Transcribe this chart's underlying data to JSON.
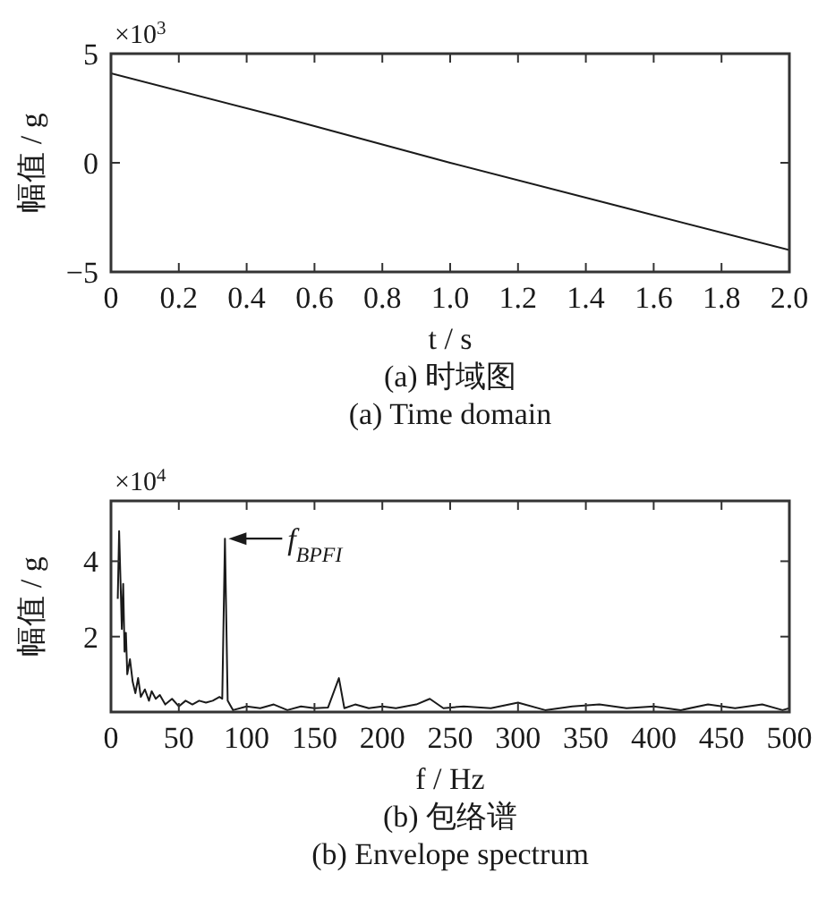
{
  "chart_data": [
    {
      "type": "line",
      "xlabel": "t / s",
      "ylabel": "幅值 / g",
      "xlim": [
        0,
        2.0
      ],
      "ylim": [
        -5,
        5
      ],
      "xticks": [
        0,
        0.2,
        0.4,
        0.6,
        0.8,
        {
          "value": 1.0,
          "label": "1.0"
        },
        1.2,
        1.4,
        1.6,
        1.8,
        {
          "value": 2.0,
          "label": "2.0"
        }
      ],
      "yticks": [
        {
          "value": -5,
          "label": "−5"
        },
        0,
        5
      ],
      "annotations": [
        "×10$^{3}$",
        "(a)  时域图",
        "(a)  Time domain"
      ],
      "series": [
        {
          "color": "#1a1a1a",
          "x": [
            0,
            0.5,
            1.0,
            1.5,
            2.0
          ],
          "values": [
            4.1,
            2.1,
            0.0,
            -2.0,
            -4.0
          ]
        }
      ]
    },
    {
      "type": "line",
      "xlabel": "f / Hz",
      "ylabel": "幅值 / g",
      "xlim": [
        0,
        500
      ],
      "ylim": [
        0,
        5.6
      ],
      "xticks": [
        0,
        50,
        100,
        150,
        200,
        250,
        300,
        350,
        400,
        450,
        500
      ],
      "yticks": [
        2,
        4
      ],
      "annotations": [
        "×10$^{4}$",
        "(b)  包络谱",
        "(b)  Envelope spectrum",
        {
          "text": "f$_{BPFI}$",
          "x": 84,
          "y": 4.6
        }
      ],
      "series": [
        {
          "color": "#1a1a1a",
          "x": [
            5,
            6,
            7,
            8,
            9,
            10,
            11,
            12,
            14,
            16,
            18,
            20,
            22,
            25,
            28,
            30,
            33,
            36,
            40,
            45,
            50,
            55,
            60,
            65,
            70,
            75,
            80,
            82,
            84,
            86,
            90,
            100,
            110,
            120,
            130,
            140,
            150,
            160,
            168,
            172,
            180,
            190,
            200,
            210,
            225,
            235,
            245,
            260,
            280,
            300,
            320,
            340,
            360,
            380,
            400,
            420,
            440,
            460,
            480,
            495,
            500
          ],
          "values": [
            3.0,
            4.8,
            3.5,
            2.2,
            3.4,
            1.6,
            2.1,
            1.0,
            1.4,
            0.8,
            0.5,
            0.9,
            0.4,
            0.6,
            0.3,
            0.55,
            0.35,
            0.45,
            0.2,
            0.35,
            0.15,
            0.3,
            0.2,
            0.3,
            0.25,
            0.3,
            0.4,
            0.35,
            4.6,
            0.3,
            0.05,
            0.15,
            0.1,
            0.2,
            0.05,
            0.15,
            0.1,
            0.12,
            0.9,
            0.1,
            0.2,
            0.1,
            0.15,
            0.1,
            0.2,
            0.35,
            0.1,
            0.15,
            0.1,
            0.25,
            0.05,
            0.15,
            0.2,
            0.1,
            0.15,
            0.05,
            0.2,
            0.1,
            0.2,
            0.05,
            0.1
          ]
        }
      ]
    }
  ]
}
